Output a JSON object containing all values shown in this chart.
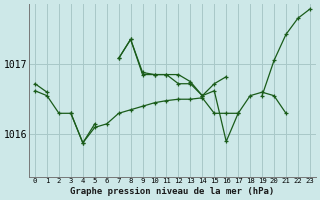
{
  "title": "Graphe pression niveau de la mer (hPa)",
  "bg_color": "#cde8e8",
  "grid_color": "#a8c8c8",
  "line_color": "#1a5c1a",
  "x_labels": [
    "0",
    "1",
    "2",
    "3",
    "4",
    "5",
    "6",
    "7",
    "8",
    "9",
    "10",
    "11",
    "12",
    "13",
    "14",
    "15",
    "16",
    "17",
    "18",
    "19",
    "20",
    "21",
    "22",
    "23"
  ],
  "yticks": [
    1016,
    1017
  ],
  "ylim": [
    1015.4,
    1017.85
  ],
  "xlim": [
    -0.5,
    23.5
  ],
  "series": [
    {
      "points": [
        [
          0,
          1016.62
        ],
        [
          1,
          1016.55
        ],
        [
          2,
          1016.3
        ],
        [
          3,
          1016.3
        ],
        [
          4,
          1015.88
        ],
        [
          5,
          1016.1
        ],
        [
          6,
          1016.15
        ],
        [
          7,
          1016.3
        ],
        [
          8,
          1016.35
        ],
        [
          9,
          1016.4
        ],
        [
          10,
          1016.45
        ],
        [
          11,
          1016.48
        ],
        [
          12,
          1016.5
        ],
        [
          13,
          1016.5
        ],
        [
          14,
          1016.52
        ],
        [
          15,
          1016.3
        ],
        [
          16,
          1016.3
        ],
        [
          17,
          1016.3
        ],
        [
          18,
          1016.55
        ],
        [
          19,
          1016.6
        ],
        [
          20,
          1016.55
        ],
        [
          21,
          1016.3
        ],
        [
          22,
          null
        ],
        [
          23,
          null
        ]
      ]
    },
    {
      "points": [
        [
          0,
          1016.72
        ],
        [
          1,
          1016.6
        ],
        [
          2,
          null
        ],
        [
          3,
          null
        ],
        [
          4,
          null
        ],
        [
          5,
          null
        ],
        [
          6,
          null
        ],
        [
          7,
          null
        ],
        [
          8,
          null
        ],
        [
          9,
          null
        ],
        [
          10,
          null
        ],
        [
          11,
          null
        ],
        [
          12,
          null
        ],
        [
          13,
          null
        ],
        [
          14,
          null
        ],
        [
          15,
          null
        ],
        [
          16,
          null
        ],
        [
          17,
          null
        ],
        [
          18,
          null
        ],
        [
          19,
          null
        ],
        [
          20,
          null
        ],
        [
          21,
          null
        ],
        [
          22,
          null
        ],
        [
          23,
          null
        ]
      ]
    },
    {
      "points": [
        [
          0,
          null
        ],
        [
          1,
          null
        ],
        [
          2,
          null
        ],
        [
          3,
          1016.3
        ],
        [
          4,
          1015.88
        ],
        [
          5,
          1016.15
        ],
        [
          6,
          null
        ],
        [
          7,
          1017.08
        ],
        [
          8,
          1017.35
        ],
        [
          9,
          1016.85
        ],
        [
          10,
          1016.85
        ],
        [
          11,
          1016.85
        ],
        [
          12,
          1016.85
        ],
        [
          13,
          1016.75
        ],
        [
          14,
          1016.55
        ],
        [
          15,
          1016.62
        ],
        [
          16,
          1015.9
        ],
        [
          17,
          1016.3
        ],
        [
          18,
          null
        ],
        [
          19,
          1016.55
        ],
        [
          20,
          1017.05
        ],
        [
          21,
          1017.42
        ],
        [
          22,
          1017.65
        ],
        [
          23,
          1017.78
        ]
      ]
    },
    {
      "points": [
        [
          0,
          null
        ],
        [
          1,
          null
        ],
        [
          2,
          null
        ],
        [
          3,
          null
        ],
        [
          4,
          null
        ],
        [
          5,
          null
        ],
        [
          6,
          null
        ],
        [
          7,
          1017.08
        ],
        [
          8,
          1017.35
        ],
        [
          9,
          1016.88
        ],
        [
          10,
          1016.85
        ],
        [
          11,
          1016.85
        ],
        [
          12,
          1016.72
        ],
        [
          13,
          1016.72
        ],
        [
          14,
          1016.55
        ],
        [
          15,
          1016.72
        ],
        [
          16,
          1016.82
        ],
        [
          17,
          null
        ],
        [
          18,
          null
        ],
        [
          19,
          null
        ],
        [
          20,
          null
        ],
        [
          21,
          null
        ],
        [
          22,
          null
        ],
        [
          23,
          null
        ]
      ]
    }
  ]
}
